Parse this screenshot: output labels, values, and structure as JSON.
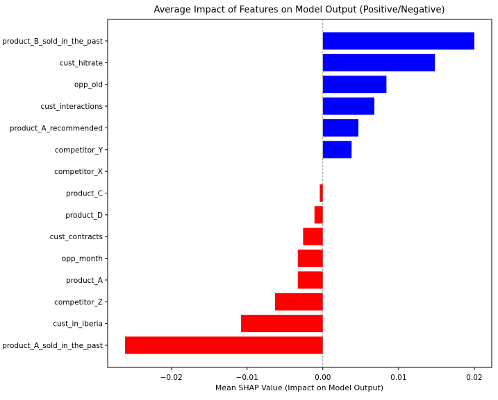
{
  "chart_data": {
    "type": "bar",
    "orientation": "horizontal",
    "title": "Average Impact of Features on Model Output (Positive/Negative)",
    "xlabel": "Mean SHAP Value (Impact on Model Output)",
    "ylabel": "",
    "categories": [
      "product_B_sold_in_the_past",
      "cust_hitrate",
      "opp_old",
      "cust_interactions",
      "product_A_recommended",
      "competitor_Y",
      "competitor_X",
      "product_C",
      "product_D",
      "cust_contracts",
      "opp_month",
      "product_A",
      "competitor_Z",
      "cust_in_iberia",
      "product_A_sold_in_the_past"
    ],
    "values": [
      0.02,
      0.0148,
      0.0084,
      0.0068,
      0.0047,
      0.0038,
      0.0,
      -0.0004,
      -0.0011,
      -0.0026,
      -0.0033,
      -0.0033,
      -0.0063,
      -0.0108,
      -0.0261
    ],
    "xlim": [
      -0.0284,
      0.0223
    ],
    "xticks": [
      -0.02,
      -0.01,
      0.0,
      0.01,
      0.02
    ],
    "xtick_labels": [
      "−0.02",
      "−0.01",
      "0.00",
      "0.01",
      "0.02"
    ],
    "zero_line": true,
    "grid": false,
    "colors": {
      "positive": "#0000ff",
      "negative": "#ff0000",
      "zero_line": "#808080",
      "axes": "#000000"
    }
  }
}
